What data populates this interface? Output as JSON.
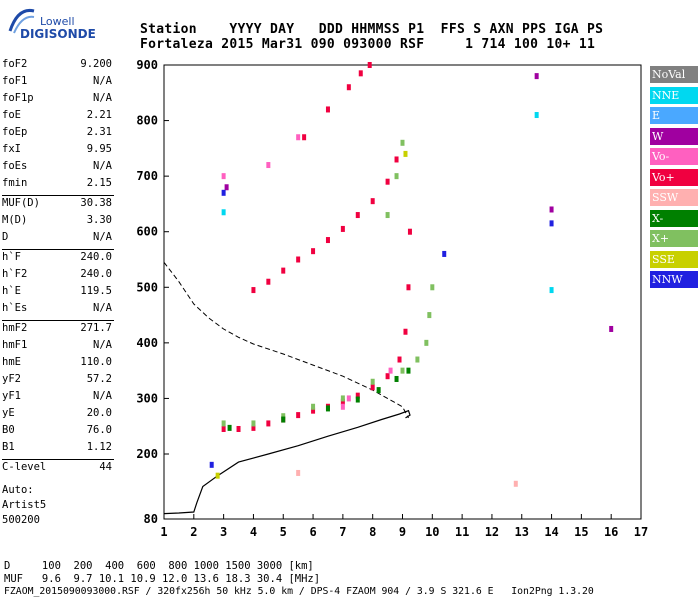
{
  "header": {
    "logo_top": "Lowell",
    "logo_bottom": "DIGISONDE",
    "row1": "Station    YYYY DAY   DDD HHMMSS P1  FFS S AXN PPS IGA PS",
    "row2": "Fortaleza 2015 Mar31 090 093000 RSF     1 714 100 10+ 11"
  },
  "params": [
    {
      "name": "foF2",
      "value": "9.200"
    },
    {
      "name": "foF1",
      "value": "N/A"
    },
    {
      "name": "foF1p",
      "value": "N/A"
    },
    {
      "name": "foE",
      "value": "2.21"
    },
    {
      "name": "foEp",
      "value": "2.31"
    },
    {
      "name": "fxI",
      "value": "9.95"
    },
    {
      "name": "foEs",
      "value": "N/A"
    },
    {
      "name": "fmin",
      "value": "2.15"
    },
    {
      "name": "MUF(D)",
      "value": "30.38"
    },
    {
      "name": "M(D)",
      "value": "3.30"
    },
    {
      "name": "D",
      "value": "N/A"
    },
    {
      "name": "h`F",
      "value": "240.0"
    },
    {
      "name": "h`F2",
      "value": "240.0"
    },
    {
      "name": "h`E",
      "value": "119.5"
    },
    {
      "name": "h`Es",
      "value": "N/A"
    },
    {
      "name": "hmF2",
      "value": "271.7"
    },
    {
      "name": "hmF1",
      "value": "N/A"
    },
    {
      "name": "hmE",
      "value": "110.0"
    },
    {
      "name": "yF2",
      "value": "57.2"
    },
    {
      "name": "yF1",
      "value": "N/A"
    },
    {
      "name": "yE",
      "value": "20.0"
    },
    {
      "name": "B0",
      "value": "76.0"
    },
    {
      "name": "B1",
      "value": "1.12"
    },
    {
      "name": "C-level",
      "value": "44"
    }
  ],
  "autoscale": {
    "line1": "Auto:",
    "line2": "Artist5",
    "line3": "500200"
  },
  "legend": [
    {
      "label": "NoVal",
      "color": "#808080"
    },
    {
      "label": "NNE",
      "color": "#00d8f0"
    },
    {
      "label": "E",
      "color": "#4aa8ff"
    },
    {
      "label": "W",
      "color": "#a000a0"
    },
    {
      "label": "Vo-",
      "color": "#ff60c0"
    },
    {
      "label": "Vo+",
      "color": "#f00040"
    },
    {
      "label": "SSW",
      "color": "#ffb0b0"
    },
    {
      "label": "X-",
      "color": "#008000"
    },
    {
      "label": "X+",
      "color": "#80c060"
    },
    {
      "label": "SSE",
      "color": "#c8d000"
    },
    {
      "label": "NNW",
      "color": "#2020e0"
    }
  ],
  "footer": {
    "d_row": "D     100  200  400  600  800 1000 1500 3000 [km]",
    "muf_row": "MUF   9.6  9.7 10.1 10.9 12.0 13.6 18.3 30.4 [MHz]",
    "file_row": "FZAOM_2015090093000.RSF / 320fx256h 50 kHz 5.0 km / DPS-4 FZAOM 904 / 3.9 S 321.6 E   Ion2Png 1.3.20"
  },
  "chart_data": {
    "type": "scatter",
    "xlabel": "",
    "ylabel": "",
    "xlim": [
      1,
      17
    ],
    "ylim": [
      80,
      900
    ],
    "x_ticks": [
      1,
      2,
      3,
      4,
      5,
      6,
      7,
      8,
      9,
      10,
      11,
      12,
      13,
      14,
      15,
      16,
      17
    ],
    "y_ticks": [
      80,
      200,
      300,
      400,
      500,
      600,
      700,
      800,
      900
    ],
    "series": [
      {
        "name": "Vo+",
        "color": "#f00040",
        "points": [
          [
            3.0,
            245
          ],
          [
            3.5,
            245
          ],
          [
            4.0,
            247
          ],
          [
            4.5,
            255
          ],
          [
            5.0,
            262
          ],
          [
            5.5,
            270
          ],
          [
            6.0,
            278
          ],
          [
            6.5,
            285
          ],
          [
            7.0,
            294
          ],
          [
            7.5,
            305
          ],
          [
            8.0,
            320
          ],
          [
            8.5,
            340
          ],
          [
            8.9,
            370
          ],
          [
            9.1,
            420
          ],
          [
            9.2,
            500
          ],
          [
            9.25,
            600
          ],
          [
            4.0,
            495
          ],
          [
            4.5,
            510
          ],
          [
            5.0,
            530
          ],
          [
            5.5,
            550
          ],
          [
            6.0,
            565
          ],
          [
            6.5,
            585
          ],
          [
            7.0,
            605
          ],
          [
            7.5,
            630
          ],
          [
            8.0,
            655
          ],
          [
            8.5,
            690
          ],
          [
            8.8,
            730
          ],
          [
            5.7,
            770
          ],
          [
            6.5,
            820
          ],
          [
            7.2,
            860
          ],
          [
            7.6,
            885
          ],
          [
            7.9,
            900
          ]
        ]
      },
      {
        "name": "X+",
        "color": "#80c060",
        "points": [
          [
            3.0,
            255
          ],
          [
            4.0,
            255
          ],
          [
            5.0,
            268
          ],
          [
            6.0,
            285
          ],
          [
            7.0,
            300
          ],
          [
            8.0,
            330
          ],
          [
            9.0,
            350
          ],
          [
            9.5,
            370
          ],
          [
            9.8,
            400
          ],
          [
            9.9,
            450
          ],
          [
            10.0,
            500
          ],
          [
            8.5,
            630
          ],
          [
            8.8,
            700
          ],
          [
            9.0,
            760
          ]
        ]
      },
      {
        "name": "X-",
        "color": "#008000",
        "points": [
          [
            3.2,
            247
          ],
          [
            5.0,
            262
          ],
          [
            6.5,
            282
          ],
          [
            7.5,
            298
          ],
          [
            8.2,
            315
          ],
          [
            8.8,
            335
          ],
          [
            9.2,
            350
          ]
        ]
      },
      {
        "name": "Vo-",
        "color": "#ff60c0",
        "points": [
          [
            3.0,
            700
          ],
          [
            4.5,
            720
          ],
          [
            5.5,
            770
          ],
          [
            7.0,
            285
          ],
          [
            7.2,
            300
          ],
          [
            8.6,
            350
          ]
        ]
      },
      {
        "name": "W",
        "color": "#a000a0",
        "points": [
          [
            3.1,
            680
          ],
          [
            13.5,
            880
          ],
          [
            14.0,
            640
          ],
          [
            16.0,
            425
          ]
        ]
      },
      {
        "name": "NNW",
        "color": "#2020e0",
        "points": [
          [
            2.6,
            180
          ],
          [
            3.0,
            670
          ],
          [
            14.0,
            615
          ],
          [
            10.4,
            560
          ]
        ]
      },
      {
        "name": "NNE",
        "color": "#00d8f0",
        "points": [
          [
            3.0,
            635
          ],
          [
            14.0,
            495
          ],
          [
            13.5,
            810
          ]
        ]
      },
      {
        "name": "SSE",
        "color": "#c8d000",
        "points": [
          [
            2.8,
            160
          ],
          [
            9.1,
            740
          ]
        ]
      },
      {
        "name": "SSW",
        "color": "#ffb0b0",
        "points": [
          [
            12.8,
            145
          ],
          [
            5.5,
            165
          ]
        ]
      }
    ],
    "profile_solid": [
      [
        1.0,
        90
      ],
      [
        1.5,
        91
      ],
      [
        2.0,
        93
      ],
      [
        2.1,
        110
      ],
      [
        2.3,
        140
      ],
      [
        2.8,
        160
      ],
      [
        3.5,
        185
      ],
      [
        4.5,
        200
      ],
      [
        5.5,
        215
      ],
      [
        6.5,
        232
      ],
      [
        7.5,
        248
      ],
      [
        8.3,
        262
      ],
      [
        8.9,
        272
      ],
      [
        9.2,
        278
      ],
      [
        9.25,
        270
      ],
      [
        9.1,
        265
      ]
    ],
    "profile_dashed": [
      [
        1.0,
        545
      ],
      [
        1.5,
        510
      ],
      [
        2.0,
        470
      ],
      [
        2.5,
        445
      ],
      [
        3.0,
        425
      ],
      [
        3.5,
        410
      ],
      [
        4.0,
        398
      ],
      [
        5.0,
        380
      ],
      [
        6.0,
        360
      ],
      [
        7.0,
        340
      ],
      [
        8.0,
        315
      ],
      [
        9.0,
        285
      ],
      [
        9.2,
        265
      ]
    ]
  }
}
